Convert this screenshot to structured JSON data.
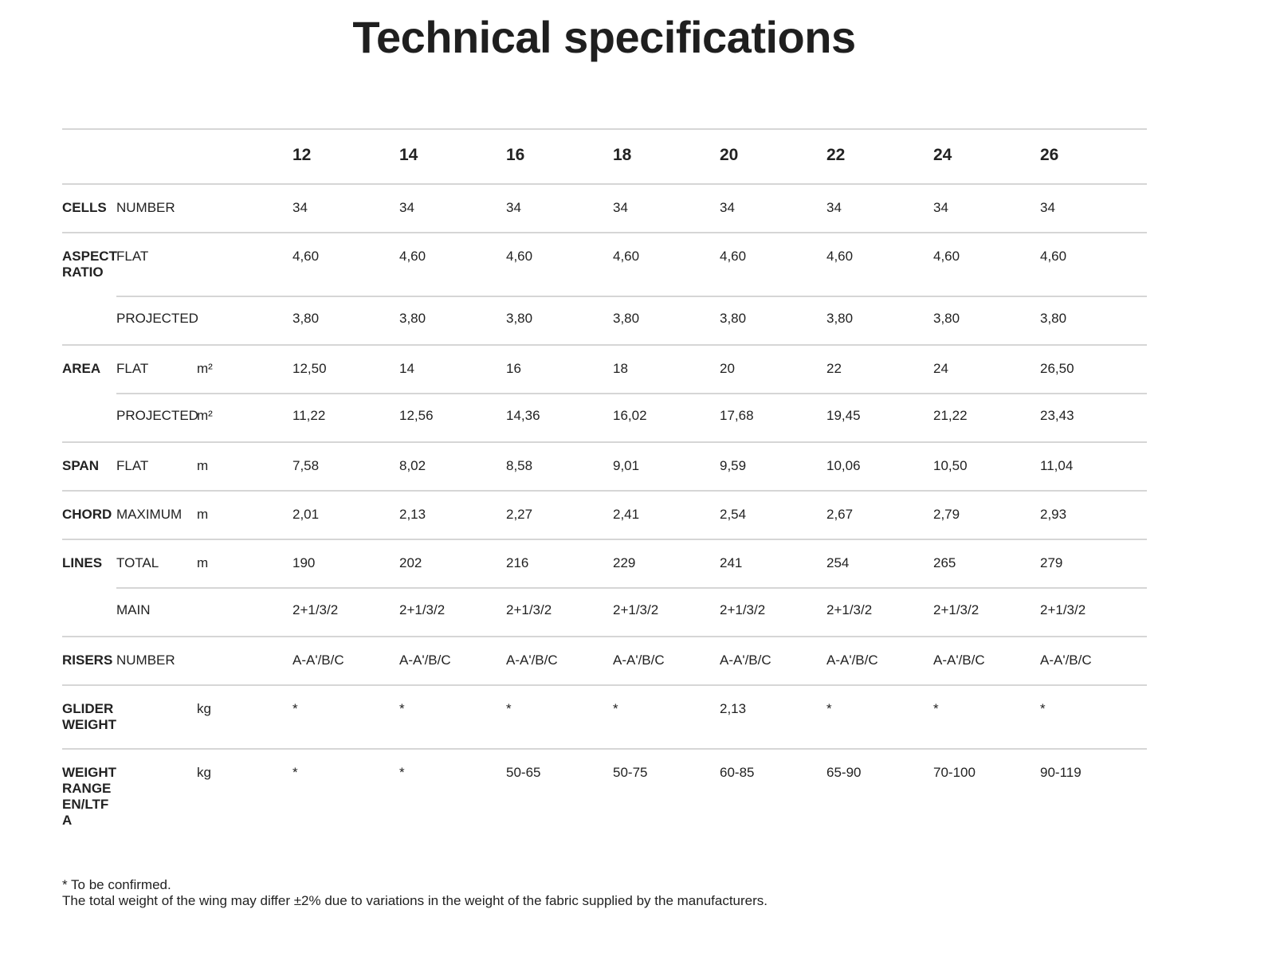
{
  "title": "Technical specifications",
  "sizes": [
    "12",
    "14",
    "16",
    "18",
    "20",
    "22",
    "24",
    "26"
  ],
  "rows": [
    {
      "group": "CELLS",
      "sub": "NUMBER",
      "unit": "",
      "values": [
        "34",
        "34",
        "34",
        "34",
        "34",
        "34",
        "34",
        "34"
      ]
    },
    {
      "group": "ASPECT RATIO",
      "sub": "FLAT",
      "unit": "",
      "values": [
        "4,60",
        "4,60",
        "4,60",
        "4,60",
        "4,60",
        "4,60",
        "4,60",
        "4,60"
      ]
    },
    {
      "group": "",
      "sub": "PROJECTED",
      "unit": "",
      "values": [
        "3,80",
        "3,80",
        "3,80",
        "3,80",
        "3,80",
        "3,80",
        "3,80",
        "3,80"
      ]
    },
    {
      "group": "AREA",
      "sub": "FLAT",
      "unit": "m²",
      "values": [
        "12,50",
        "14",
        "16",
        "18",
        "20",
        "22",
        "24",
        "26,50"
      ]
    },
    {
      "group": "",
      "sub": "PROJECTED",
      "unit": "m²",
      "values": [
        "11,22",
        "12,56",
        "14,36",
        "16,02",
        "17,68",
        "19,45",
        "21,22",
        "23,43"
      ]
    },
    {
      "group": "SPAN",
      "sub": "FLAT",
      "unit": "m",
      "values": [
        "7,58",
        "8,02",
        "8,58",
        "9,01",
        "9,59",
        "10,06",
        "10,50",
        "11,04"
      ]
    },
    {
      "group": "CHORD",
      "sub": "MAXIMUM",
      "unit": "m",
      "values": [
        "2,01",
        "2,13",
        "2,27",
        "2,41",
        "2,54",
        "2,67",
        "2,79",
        "2,93"
      ]
    },
    {
      "group": "LINES",
      "sub": "TOTAL",
      "unit": "m",
      "values": [
        "190",
        "202",
        "216",
        "229",
        "241",
        "254",
        "265",
        "279"
      ]
    },
    {
      "group": "",
      "sub": "MAIN",
      "unit": "",
      "values": [
        "2+1/3/2",
        "2+1/3/2",
        "2+1/3/2",
        "2+1/3/2",
        "2+1/3/2",
        "2+1/3/2",
        "2+1/3/2",
        "2+1/3/2"
      ]
    },
    {
      "group": "RISERS",
      "sub": "NUMBER",
      "unit": "",
      "values": [
        "A-A'/B/C",
        "A-A'/B/C",
        "A-A'/B/C",
        "A-A'/B/C",
        "A-A'/B/C",
        "A-A'/B/C",
        "A-A'/B/C",
        "A-A'/B/C"
      ]
    },
    {
      "group": "GLIDER WEIGHT",
      "sub": "",
      "unit": "kg",
      "values": [
        "*",
        "*",
        "*",
        "*",
        "2,13",
        "*",
        "*",
        "*"
      ]
    },
    {
      "group": "WEIGHT RANGE EN/LTF A",
      "sub": "",
      "unit": "kg",
      "values": [
        "*",
        "*",
        "50-65",
        "50-75",
        "60-85",
        "65-90",
        "70-100",
        "90-119"
      ]
    }
  ],
  "footnotes": [
    "* To be confirmed.",
    "The total weight of the wing may differ ±2% due to variations in the weight of the fabric supplied by the manufacturers."
  ]
}
